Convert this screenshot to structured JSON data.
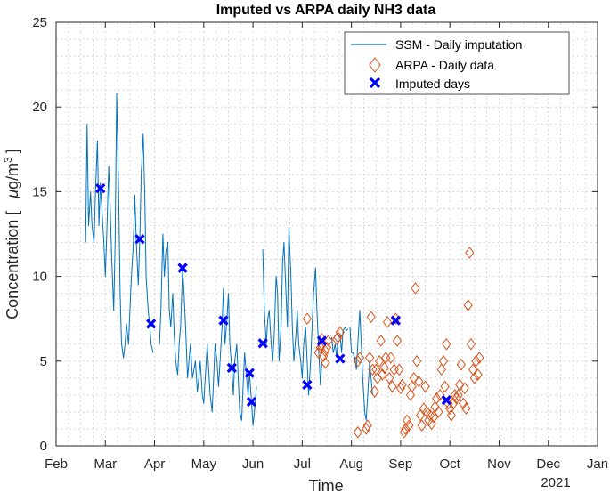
{
  "colors": {
    "ssm": "#0072BD",
    "arpa": "#D95319",
    "imputed": "#0000FF",
    "axis": "#262626"
  },
  "chart_data": {
    "type": "line",
    "title": "Imputed vs ARPA daily NH3 data",
    "xlabel": "Time",
    "ylabel": "Concentration [ μg/m3 ]",
    "ylabel_parts": {
      "prefix": "Concentration [",
      "mu": "μ",
      "unit": "g/m",
      "sup": "3",
      "suffix": "]"
    },
    "year_label": "2021",
    "grid": true,
    "legend_position": "top-right",
    "xlim_month_index": [
      0,
      11
    ],
    "ylim": [
      0,
      25
    ],
    "x_ticks": [
      "Feb",
      "Mar",
      "Apr",
      "May",
      "Jun",
      "Jul",
      "Aug",
      "Sep",
      "Oct",
      "Nov",
      "Dec",
      "Jan"
    ],
    "y_ticks": [
      0,
      5,
      10,
      15,
      20,
      25
    ],
    "legend": [
      {
        "key": "ssm",
        "label": "SSM - Daily imputation"
      },
      {
        "key": "arpa",
        "label": "ARPA - Daily data"
      },
      {
        "key": "imputed",
        "label": "Imputed days"
      }
    ],
    "series": [
      {
        "name": "SSM - Daily imputation",
        "style": "line",
        "segments": [
          [
            [
              0.6,
              12
            ],
            [
              0.63,
              19
            ],
            [
              0.66,
              13
            ],
            [
              0.7,
              15
            ],
            [
              0.73,
              13
            ],
            [
              0.77,
              12
            ],
            [
              0.8,
              15
            ],
            [
              0.84,
              18
            ],
            [
              0.87,
              13
            ],
            [
              0.9,
              15.5
            ],
            [
              0.93,
              14
            ],
            [
              0.97,
              12
            ],
            [
              1.0,
              10
            ],
            [
              1.03,
              12.5
            ],
            [
              1.07,
              16.5
            ],
            [
              1.1,
              14
            ],
            [
              1.13,
              11
            ],
            [
              1.17,
              8
            ],
            [
              1.2,
              12
            ],
            [
              1.23,
              20.8
            ],
            [
              1.27,
              15
            ],
            [
              1.3,
              9
            ],
            [
              1.33,
              6
            ],
            [
              1.37,
              5.2
            ],
            [
              1.4,
              6
            ],
            [
              1.43,
              7.2
            ],
            [
              1.47,
              6
            ],
            [
              1.5,
              8
            ],
            [
              1.53,
              10
            ],
            [
              1.57,
              12
            ],
            [
              1.6,
              14.8
            ],
            [
              1.63,
              12
            ],
            [
              1.67,
              9.5
            ],
            [
              1.7,
              12.2
            ],
            [
              1.73,
              16
            ],
            [
              1.77,
              18.4
            ],
            [
              1.8,
              15
            ],
            [
              1.83,
              10
            ],
            [
              1.87,
              8
            ],
            [
              1.9,
              7.2
            ],
            [
              1.93,
              6
            ],
            [
              1.97,
              5.5
            ]
          ],
          [
            [
              2.1,
              6
            ],
            [
              2.13,
              8
            ],
            [
              2.17,
              12.5
            ],
            [
              2.2,
              10
            ],
            [
              2.23,
              11.5
            ],
            [
              2.27,
              12
            ],
            [
              2.3,
              8
            ],
            [
              2.33,
              7
            ],
            [
              2.37,
              9
            ],
            [
              2.4,
              6.5
            ],
            [
              2.43,
              5
            ],
            [
              2.47,
              4.2
            ],
            [
              2.5,
              6
            ],
            [
              2.53,
              7
            ],
            [
              2.57,
              10.5
            ],
            [
              2.6,
              9
            ],
            [
              2.63,
              7
            ],
            [
              2.67,
              4
            ],
            [
              2.7,
              5
            ],
            [
              2.73,
              6
            ],
            [
              2.77,
              4
            ],
            [
              2.8,
              4.5
            ],
            [
              2.83,
              5
            ],
            [
              2.87,
              3.2
            ],
            [
              2.9,
              4
            ],
            [
              2.93,
              5
            ],
            [
              2.97,
              3
            ],
            [
              3.0,
              2.5
            ],
            [
              3.03,
              4
            ],
            [
              3.07,
              6
            ],
            [
              3.1,
              4.5
            ],
            [
              3.13,
              3
            ],
            [
              3.17,
              2
            ],
            [
              3.2,
              4
            ],
            [
              3.23,
              6
            ],
            [
              3.27,
              5
            ],
            [
              3.3,
              3.5
            ],
            [
              3.33,
              5
            ],
            [
              3.37,
              7
            ],
            [
              3.4,
              9.3
            ],
            [
              3.43,
              6
            ],
            [
              3.47,
              7.4
            ],
            [
              3.5,
              9
            ],
            [
              3.53,
              6
            ],
            [
              3.57,
              4.6
            ],
            [
              3.6,
              3
            ],
            [
              3.63,
              5
            ],
            [
              3.67,
              6
            ],
            [
              3.7,
              4
            ],
            [
              3.73,
              2
            ],
            [
              3.77,
              1.5
            ],
            [
              3.8,
              3.5
            ],
            [
              3.83,
              5.5
            ],
            [
              3.87,
              4
            ],
            [
              3.9,
              3
            ],
            [
              3.93,
              4.3
            ],
            [
              3.97,
              2.6
            ],
            [
              4.0,
              1.2
            ],
            [
              4.03,
              2
            ],
            [
              4.07,
              3.5
            ]
          ],
          [
            [
              4.2,
              11.6
            ],
            [
              4.23,
              8
            ],
            [
              4.27,
              6
            ],
            [
              4.3,
              7.5
            ],
            [
              4.33,
              8
            ],
            [
              4.37,
              6
            ],
            [
              4.4,
              5
            ],
            [
              4.43,
              6.5
            ],
            [
              4.47,
              10
            ],
            [
              4.5,
              9
            ],
            [
              4.53,
              5
            ],
            [
              4.57,
              7
            ],
            [
              4.6,
              10.8
            ],
            [
              4.63,
              12
            ],
            [
              4.67,
              9
            ],
            [
              4.7,
              7
            ],
            [
              4.73,
              12.9
            ],
            [
              4.77,
              10
            ],
            [
              4.8,
              7
            ],
            [
              4.83,
              5
            ],
            [
              4.87,
              6.5
            ],
            [
              4.9,
              8
            ],
            [
              4.93,
              6
            ],
            [
              4.97,
              5
            ],
            [
              5.0,
              4
            ],
            [
              5.03,
              6
            ],
            [
              5.07,
              7
            ],
            [
              5.1,
              5
            ],
            [
              5.13,
              3
            ],
            [
              5.17,
              5
            ],
            [
              5.2,
              7
            ],
            [
              5.23,
              9
            ],
            [
              5.27,
              10.5
            ],
            [
              5.3,
              8
            ],
            [
              5.33,
              6
            ],
            [
              5.37,
              3.6
            ],
            [
              5.4,
              5
            ]
          ],
          [
            [
              5.6,
              6.4
            ],
            [
              5.63,
              5.5
            ],
            [
              5.67,
              6
            ],
            [
              5.7,
              5.2
            ],
            [
              5.73,
              6.4
            ],
            [
              5.77,
              6.6
            ],
            [
              5.8,
              5.5
            ],
            [
              5.83,
              6.8
            ],
            [
              5.87,
              7
            ],
            [
              5.9,
              6.8
            ],
            [
              5.93,
              6.9
            ]
          ],
          [
            [
              5.97,
              7
            ],
            [
              6.0,
              5.5
            ],
            [
              6.03,
              5.5
            ],
            [
              6.07,
              5.2
            ],
            [
              6.1,
              4.5
            ],
            [
              6.13,
              6
            ],
            [
              6.17,
              8
            ],
            [
              6.2,
              6
            ],
            [
              6.23,
              4
            ],
            [
              6.27,
              2
            ],
            [
              6.3,
              1.5
            ],
            [
              6.33,
              3
            ],
            [
              6.37,
              5
            ],
            [
              6.4,
              4
            ],
            [
              6.43,
              3
            ]
          ]
        ]
      },
      {
        "name": "ARPA - Daily data",
        "style": "diamond-markers",
        "points": [
          [
            5.33,
            5.5
          ],
          [
            5.37,
            5.8
          ],
          [
            5.4,
            6.3
          ],
          [
            5.43,
            5.3
          ],
          [
            5.47,
            5.6
          ],
          [
            5.5,
            5.8
          ],
          [
            5.53,
            6.2
          ],
          [
            5.47,
            4.9
          ],
          [
            5.1,
            7.5
          ],
          [
            5.4,
            6.0
          ],
          [
            5.7,
            6.3
          ],
          [
            5.73,
            6.4
          ],
          [
            5.77,
            6.7
          ],
          [
            6.13,
            5.0
          ],
          [
            6.17,
            5.2
          ],
          [
            6.13,
            0.8
          ],
          [
            6.3,
            1.0
          ],
          [
            6.33,
            1.2
          ],
          [
            6.37,
            5.2
          ],
          [
            6.4,
            7.6
          ],
          [
            6.43,
            4.5
          ],
          [
            6.47,
            3.2
          ],
          [
            6.5,
            4.5
          ],
          [
            6.53,
            4.0
          ],
          [
            6.57,
            5.0
          ],
          [
            6.6,
            6.2
          ],
          [
            6.63,
            4.2
          ],
          [
            6.67,
            4.6
          ],
          [
            6.7,
            5.2
          ],
          [
            6.73,
            7.3
          ],
          [
            6.77,
            4.0
          ],
          [
            6.8,
            5.2
          ],
          [
            6.83,
            3.5
          ],
          [
            6.87,
            4.5
          ],
          [
            6.9,
            7.5
          ],
          [
            6.93,
            6.2
          ],
          [
            6.97,
            4.5
          ],
          [
            7.0,
            3.4
          ],
          [
            7.03,
            3.6
          ],
          [
            7.07,
            0.8
          ],
          [
            7.1,
            1.0
          ],
          [
            7.13,
            1.5
          ],
          [
            7.17,
            1.2
          ],
          [
            7.2,
            3.0
          ],
          [
            7.23,
            3.5
          ],
          [
            7.27,
            4.0
          ],
          [
            7.3,
            9.3
          ],
          [
            7.33,
            5.0
          ],
          [
            7.37,
            3.8
          ],
          [
            7.4,
            1.8
          ],
          [
            7.43,
            1.2
          ],
          [
            7.47,
            2.2
          ],
          [
            7.5,
            3.5
          ],
          [
            7.53,
            2.0
          ],
          [
            7.57,
            1.5
          ],
          [
            7.6,
            1.8
          ],
          [
            7.63,
            1.3
          ],
          [
            7.67,
            1.7
          ],
          [
            7.7,
            2.3
          ],
          [
            7.73,
            2.8
          ],
          [
            7.77,
            2.0
          ],
          [
            7.8,
            3.0
          ],
          [
            7.83,
            4.5
          ],
          [
            7.87,
            5.0
          ],
          [
            7.9,
            3.5
          ],
          [
            7.93,
            6.0
          ],
          [
            7.97,
            2.5
          ],
          [
            8.0,
            2.2
          ],
          [
            8.03,
            1.8
          ],
          [
            8.07,
            2.5
          ],
          [
            8.1,
            3.0
          ],
          [
            8.13,
            2.8
          ],
          [
            8.17,
            3.0
          ],
          [
            8.2,
            3.6
          ],
          [
            8.23,
            4.8
          ],
          [
            8.27,
            2.5
          ],
          [
            8.3,
            3.4
          ],
          [
            8.33,
            2.2
          ],
          [
            8.37,
            8.3
          ],
          [
            8.4,
            11.4
          ],
          [
            8.43,
            6.0
          ],
          [
            8.47,
            4.5
          ],
          [
            8.5,
            4.0
          ],
          [
            8.53,
            5.0
          ],
          [
            8.57,
            4.2
          ],
          [
            8.6,
            5.2
          ]
        ]
      },
      {
        "name": "Imputed days",
        "style": "x-markers",
        "points": [
          [
            0.9,
            15.2
          ],
          [
            1.7,
            12.2
          ],
          [
            1.93,
            7.2
          ],
          [
            2.57,
            10.5
          ],
          [
            3.4,
            7.4
          ],
          [
            3.57,
            4.6
          ],
          [
            3.93,
            4.3
          ],
          [
            3.97,
            2.6
          ],
          [
            4.2,
            6.05
          ],
          [
            5.1,
            3.6
          ],
          [
            5.4,
            6.2
          ],
          [
            5.77,
            5.15
          ],
          [
            6.9,
            7.4
          ],
          [
            7.93,
            2.7
          ]
        ]
      }
    ]
  }
}
